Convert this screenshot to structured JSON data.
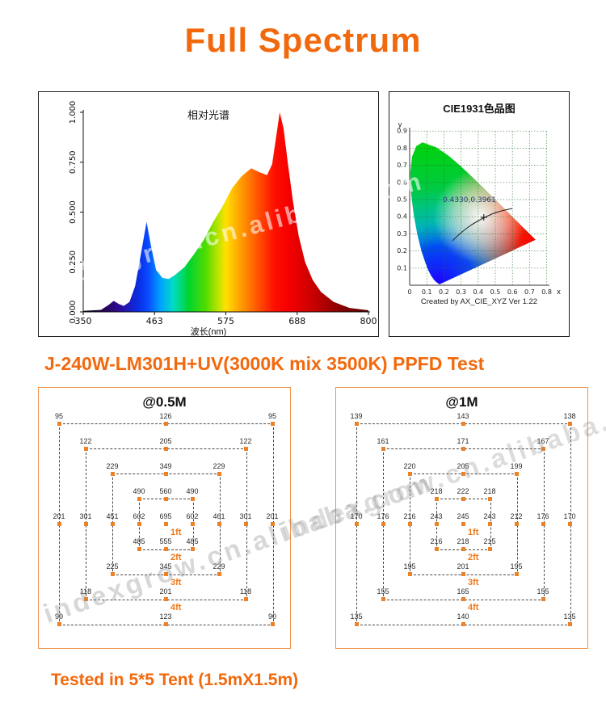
{
  "page": {
    "title": "Full Spectrum"
  },
  "colors": {
    "accent": "#f2690d",
    "marker": "#ee8125",
    "ring_label": "#f07818"
  },
  "watermark": {
    "text": "indexgrow.cn.alibaba.com"
  },
  "spectrum_chart": {
    "title": "相对光谱",
    "xlabel": "波长(nm)",
    "x_ticks": [
      "350",
      "463",
      "575",
      "688",
      "800"
    ],
    "y_ticks": [
      "1.000",
      "0.750",
      "0.500",
      "0.250",
      "0.000"
    ]
  },
  "cie_chart": {
    "title": "CIE1931色品图",
    "x_axis_label": "x",
    "y_axis_label": "y",
    "x_ticks": [
      "0",
      "0.1",
      "0.2",
      "0.3",
      "0.4",
      "0.5",
      "0.6",
      "0.7",
      "0.8"
    ],
    "y_ticks": [
      "0.1",
      "0.2",
      "0.3",
      "0.4",
      "0.5",
      "0.6",
      "0.7",
      "0.8",
      "0.9"
    ],
    "point_label": "0.4330,0.3961",
    "credit": "Created by AX_CIE_XYZ Ver 1.22"
  },
  "ppfd": {
    "heading": "J-240W-LM301H+UV(3000K mix 3500K) PPFD Test",
    "ring_labels": [
      "1ft",
      "2ft",
      "3ft",
      "4ft"
    ],
    "panels": [
      {
        "title": "@0.5M"
      },
      {
        "title": "@1M"
      }
    ]
  },
  "footer": {
    "text": "Tested in 5*5 Tent (1.5mX1.5m)"
  },
  "chart_data": [
    {
      "type": "area",
      "title": "相对光谱",
      "xlabel": "波长(nm)",
      "ylabel": "",
      "xlim": [
        350,
        800
      ],
      "ylim": [
        0,
        1
      ],
      "x_ticks": [
        350,
        463,
        575,
        688,
        800
      ],
      "y_ticks": [
        0,
        0.25,
        0.5,
        0.75,
        1
      ],
      "series": [
        {
          "name": "relative spectral power",
          "x": [
            350,
            378,
            390,
            398,
            406,
            414,
            423,
            432,
            441,
            450,
            457,
            465,
            475,
            485,
            495,
            510,
            525,
            540,
            555,
            570,
            585,
            600,
            615,
            628,
            640,
            648,
            654,
            660,
            666,
            673,
            681,
            690,
            700,
            712,
            725,
            745,
            770,
            800
          ],
          "y": [
            0.005,
            0.01,
            0.035,
            0.055,
            0.04,
            0.03,
            0.05,
            0.13,
            0.29,
            0.45,
            0.33,
            0.21,
            0.17,
            0.165,
            0.185,
            0.225,
            0.29,
            0.36,
            0.45,
            0.53,
            0.62,
            0.68,
            0.72,
            0.7,
            0.685,
            0.74,
            0.87,
            1.0,
            0.92,
            0.74,
            0.55,
            0.38,
            0.25,
            0.16,
            0.1,
            0.05,
            0.02,
            0.008
          ]
        }
      ]
    },
    {
      "type": "scatter",
      "title": "CIE1931色品图",
      "xlim": [
        0,
        0.8
      ],
      "ylim": [
        0,
        0.9
      ],
      "points": [
        {
          "x": 0.433,
          "y": 0.3961
        }
      ],
      "point_label": "0.4330,0.3961",
      "annotation": "Created by AX_CIE_XYZ Ver 1.22",
      "legend_position": "none"
    },
    {
      "type": "heatmap",
      "title": "@0.5M",
      "grid": [
        [
          95,
          null,
          null,
          null,
          126,
          null,
          null,
          null,
          95
        ],
        [
          null,
          122,
          null,
          null,
          205,
          null,
          null,
          122,
          null
        ],
        [
          null,
          null,
          229,
          null,
          349,
          null,
          229,
          null,
          null
        ],
        [
          null,
          null,
          null,
          490,
          560,
          490,
          null,
          null,
          null
        ],
        [
          201,
          301,
          451,
          602,
          695,
          602,
          461,
          301,
          201
        ],
        [
          null,
          null,
          null,
          485,
          555,
          485,
          null,
          null,
          null
        ],
        [
          null,
          null,
          225,
          null,
          345,
          null,
          229,
          null,
          null
        ],
        [
          null,
          118,
          null,
          null,
          201,
          null,
          null,
          118,
          null
        ],
        [
          90,
          null,
          null,
          null,
          123,
          null,
          null,
          null,
          90
        ]
      ]
    },
    {
      "type": "heatmap",
      "title": "@1M",
      "grid": [
        [
          139,
          null,
          null,
          null,
          143,
          null,
          null,
          null,
          138
        ],
        [
          null,
          161,
          null,
          null,
          171,
          null,
          null,
          167,
          null
        ],
        [
          null,
          null,
          220,
          null,
          205,
          null,
          199,
          null,
          null
        ],
        [
          null,
          null,
          null,
          218,
          222,
          218,
          null,
          null,
          null
        ],
        [
          170,
          176,
          216,
          243,
          245,
          243,
          212,
          176,
          170
        ],
        [
          null,
          null,
          null,
          216,
          218,
          215,
          null,
          null,
          null
        ],
        [
          null,
          null,
          195,
          null,
          201,
          null,
          195,
          null,
          null
        ],
        [
          null,
          155,
          null,
          null,
          165,
          null,
          null,
          155,
          null
        ],
        [
          135,
          null,
          null,
          null,
          140,
          null,
          null,
          null,
          135
        ]
      ]
    }
  ]
}
